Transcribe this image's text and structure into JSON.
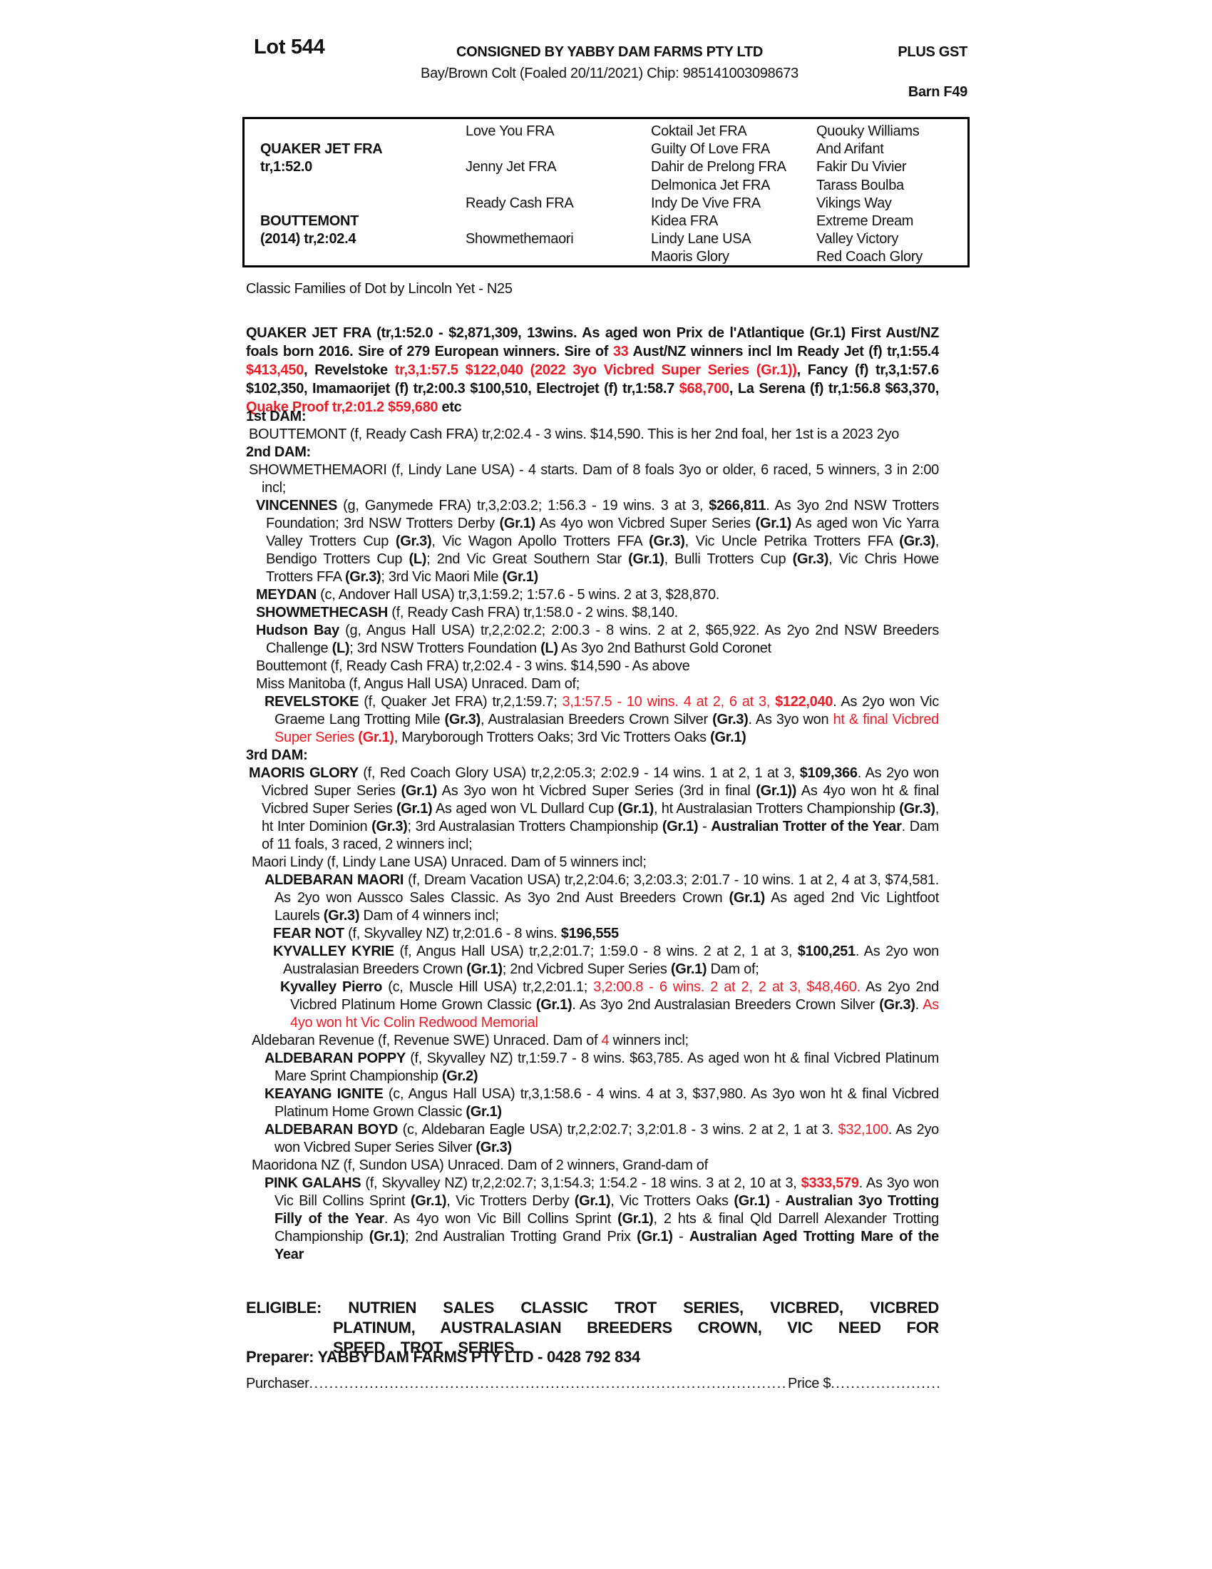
{
  "colors": {
    "text": "#111111",
    "red": "#ed1c24"
  },
  "header": {
    "lot": "Lot 544",
    "consigned": "CONSIGNED BY YABBY DAM FARMS PTY LTD",
    "plus_gst": "PLUS GST",
    "description": "Bay/Brown Colt (Foaled 20/11/2021) Chip: 985141003098673",
    "barn": "Barn F49"
  },
  "pedigree_table": {
    "sire": {
      "name": "QUAKER JET FRA",
      "record": "tr,1:52.0"
    },
    "dam": {
      "name": "BOUTTEMONT",
      "record": "(2014) tr,2:02.4"
    },
    "gen2": [
      "Love You FRA",
      "Jenny Jet FRA",
      "Ready Cash FRA",
      "Showmethemaori"
    ],
    "gen3": [
      "Coktail Jet FRA",
      "Guilty Of Love FRA",
      "Dahir de Prelong FRA",
      "Delmonica Jet FRA",
      "Indy De Vive FRA",
      "Kidea FRA",
      "Lindy Lane USA",
      "Maoris Glory"
    ],
    "gen4": [
      "Quouky Williams",
      "And Arifant",
      "Fakir Du Vivier",
      "Tarass Boulba",
      "Vikings Way",
      "Extreme Dream",
      "Valley Victory",
      "Red Coach Glory"
    ]
  },
  "classic_line": "Classic Families of Dot by Lincoln Yet - N25",
  "sire_summary": {
    "segments": [
      [
        "b",
        "QUAKER JET FRA (tr,1:52.0 - $2,871,309, 13wins. As aged won Prix de l'Atlantique (Gr.1) First Aust/NZ foals born 2016. Sire of 279 European winners. Sire of "
      ],
      [
        "br",
        "33"
      ],
      [
        "b",
        " Aust/NZ winners incl Im Ready Jet (f) tr,1:55.4 "
      ],
      [
        "br",
        "$413,450"
      ],
      [
        "b",
        ", Revelstoke "
      ],
      [
        "br",
        "tr,3,1:57.5 $122,040 (2022 3yo Vicbred Super Series (Gr.1))"
      ],
      [
        "b",
        ", Fancy (f) tr,3,1:57.6 $102,350, Imamaorijet (f) tr,2:00.3 $100,510, Electrojet (f) tr,1:58.7 "
      ],
      [
        "br",
        "$68,700"
      ],
      [
        "b",
        ",  La Serena (f) tr,1:56.8 $63,370, "
      ],
      [
        "br",
        "Quake Proof tr,2:01.2 $59,680"
      ],
      [
        "b",
        " etc"
      ]
    ]
  },
  "pedigree": [
    {
      "c": "dam-label",
      "s": [
        [
          "b",
          "1st DAM:"
        ]
      ]
    },
    {
      "c": "e-dam",
      "s": [
        [
          "",
          "BOUTTEMONT (f, Ready Cash FRA) tr,2:02.4 - 3 wins. $14,590. This is her 2nd foal, her 1st is a 2023 2yo"
        ]
      ]
    },
    {
      "c": "dam-label",
      "s": [
        [
          "b",
          "2nd DAM:"
        ]
      ]
    },
    {
      "c": "e-dam",
      "s": [
        [
          "",
          "SHOWMETHEMAORI (f, Lindy Lane USA) - 4 starts. Dam of 8 foals 3yo or older, 6 raced, 5 winners, 3 in 2:00 incl;"
        ]
      ]
    },
    {
      "c": "g1",
      "s": [
        [
          "b",
          "VINCENNES "
        ],
        [
          "",
          "(g, Ganymede FRA) tr,3,2:03.2; 1:56.3 - 19 wins. 3 at 3, "
        ],
        [
          "b",
          "$266,811"
        ],
        [
          "",
          ". As 3yo 2nd NSW Trotters Foundation; 3rd NSW Trotters Derby "
        ],
        [
          "b",
          "(Gr.1)"
        ],
        [
          "",
          " As 4yo won Vicbred Super Series "
        ],
        [
          "b",
          "(Gr.1)"
        ],
        [
          "",
          " As aged won Vic Yarra Valley Trotters Cup "
        ],
        [
          "b",
          "(Gr.3)"
        ],
        [
          "",
          ", Vic Wagon Apollo Trotters FFA "
        ],
        [
          "b",
          "(Gr.3)"
        ],
        [
          "",
          ", Vic Uncle Petrika Trotters FFA "
        ],
        [
          "b",
          "(Gr.3)"
        ],
        [
          "",
          ", Bendigo Trotters Cup "
        ],
        [
          "b",
          "(L)"
        ],
        [
          "",
          "; 2nd Vic Great Southern Star "
        ],
        [
          "b",
          "(Gr.1)"
        ],
        [
          "",
          ", Bulli Trotters Cup "
        ],
        [
          "b",
          "(Gr.3)"
        ],
        [
          "",
          ", Vic Chris Howe Trotters FFA "
        ],
        [
          "b",
          "(Gr.3)"
        ],
        [
          "",
          "; 3rd Vic Maori Mile "
        ],
        [
          "b",
          "(Gr.1)"
        ]
      ]
    },
    {
      "c": "g1",
      "s": [
        [
          "b",
          "MEYDAN "
        ],
        [
          "",
          "(c, Andover Hall USA) tr,3,1:59.2; 1:57.6 - 5 wins. 2 at 3, $28,870."
        ]
      ]
    },
    {
      "c": "g1",
      "s": [
        [
          "b",
          "SHOWMETHECASH "
        ],
        [
          "",
          "(f, Ready Cash FRA) tr,1:58.0 - 2 wins. $8,140."
        ]
      ]
    },
    {
      "c": "g1",
      "s": [
        [
          "b",
          "Hudson Bay "
        ],
        [
          "",
          "(g, Angus Hall USA) tr,2,2:02.2; 2:00.3 - 8 wins. 2 at 2, $65,922. As 2yo 2nd NSW Breeders Challenge "
        ],
        [
          "b",
          "(L)"
        ],
        [
          "",
          "; 3rd NSW Trotters Foundation "
        ],
        [
          "b",
          "(L)"
        ],
        [
          "",
          " As 3yo 2nd Bathurst Gold Coronet"
        ]
      ]
    },
    {
      "c": "g1",
      "s": [
        [
          "",
          "Bouttemont (f, Ready Cash FRA) tr,2:02.4 - 3 wins. $14,590 - As above"
        ]
      ]
    },
    {
      "c": "g1",
      "s": [
        [
          "",
          "Miss Manitoba (f, Angus Hall USA) Unraced. Dam of;"
        ]
      ]
    },
    {
      "c": "g2",
      "s": [
        [
          "b",
          "REVELSTOKE "
        ],
        [
          "",
          "(f, Quaker Jet FRA) tr,2,1:59.7; "
        ],
        [
          "r",
          "3,1:57.5 - 10 wins. 4 at 2, 6 at 3, "
        ],
        [
          "br",
          "$122,040"
        ],
        [
          "",
          ". As 2yo won Vic Graeme Lang Trotting Mile "
        ],
        [
          "b",
          "(Gr.3)"
        ],
        [
          "",
          ", Australasian Breeders Crown Silver "
        ],
        [
          "b",
          "(Gr.3)"
        ],
        [
          "",
          ". As 3yo won "
        ],
        [
          "r",
          "ht & final Vicbred Super Series "
        ],
        [
          "br",
          "(Gr.1)"
        ],
        [
          "",
          ", Maryborough Trotters Oaks; 3rd Vic Trotters Oaks "
        ],
        [
          "b",
          "(Gr.1)"
        ]
      ]
    },
    {
      "c": "dam-label",
      "s": [
        [
          "b",
          "3rd DAM:"
        ]
      ]
    },
    {
      "c": "e-dam",
      "s": [
        [
          "b",
          "MAORIS GLORY "
        ],
        [
          "",
          "(f, Red Coach Glory USA) tr,2,2:05.3; 2:02.9 - 14 wins. 1 at 2, 1 at 3, "
        ],
        [
          "b",
          "$109,366"
        ],
        [
          "",
          ". As 2yo won Vicbred Super Series "
        ],
        [
          "b",
          "(Gr.1)"
        ],
        [
          "",
          " As 3yo won ht Vicbred Super Series (3rd in final "
        ],
        [
          "b",
          "(Gr.1))"
        ],
        [
          "",
          " As 4yo won ht & final Vicbred Super Series "
        ],
        [
          "b",
          "(Gr.1)"
        ],
        [
          "",
          " As aged won VL Dullard Cup "
        ],
        [
          "b",
          "(Gr.1)"
        ],
        [
          "",
          ", ht Australasian Trotters Championship "
        ],
        [
          "b",
          "(Gr.3)"
        ],
        [
          "",
          ", ht Inter Dominion "
        ],
        [
          "b",
          "(Gr.3)"
        ],
        [
          "",
          "; 3rd Australasian Trotters Championship "
        ],
        [
          "b",
          "(Gr.1)"
        ],
        [
          "",
          " - "
        ],
        [
          "b",
          "Australian Trotter of the Year"
        ],
        [
          "",
          ". Dam of 11 foals, 3 raced, 2 winners incl;"
        ]
      ]
    },
    {
      "c": "e1c",
      "s": [
        [
          "",
          "Maori Lindy (f, Lindy Lane USA) Unraced. Dam of 5 winners incl;"
        ]
      ]
    },
    {
      "c": "g2",
      "s": [
        [
          "b",
          "ALDEBARAN MAORI "
        ],
        [
          "",
          "(f, Dream Vacation USA) tr,2,2:04.6; 3,2:03.3; 2:01.7 - 10 wins. 1 at 2, 4 at 3, $74,581. As 2yo won Aussco Sales Classic. As 3yo 2nd Aust Breeders Crown "
        ],
        [
          "b",
          "(Gr.1)"
        ],
        [
          "",
          " As aged 2nd Vic Lightfoot Laurels "
        ],
        [
          "b",
          "(Gr.3)"
        ],
        [
          "",
          " Dam of 4 winners incl;"
        ]
      ]
    },
    {
      "c": "g3",
      "s": [
        [
          "b",
          "FEAR NOT "
        ],
        [
          "",
          "(f, Skyvalley NZ) tr,2:01.6 - 8 wins. "
        ],
        [
          "b",
          "$196,555"
        ]
      ]
    },
    {
      "c": "g3",
      "s": [
        [
          "b",
          "KYVALLEY KYRIE "
        ],
        [
          "",
          "(f, Angus Hall USA) tr,2,2:01.7; 1:59.0 - 8 wins. 2 at 2, 1 at 3, "
        ],
        [
          "b",
          "$100,251"
        ],
        [
          "",
          ". As 2yo won Australasian Breeders Crown "
        ],
        [
          "b",
          "(Gr.1)"
        ],
        [
          "",
          "; 2nd Vicbred Super Series "
        ],
        [
          "b",
          "(Gr.1)"
        ],
        [
          "",
          " Dam of;"
        ]
      ]
    },
    {
      "c": "g4",
      "s": [
        [
          "b",
          "Kyvalley Pierro "
        ],
        [
          "",
          "(c, Muscle Hill USA) tr,2,2:01.1; "
        ],
        [
          "r",
          "3,2:00.8 - 6 wins. 2 at 2, 2 at 3, $48,460."
        ],
        [
          "",
          " As 2yo 2nd Vicbred Platinum Home Grown Classic "
        ],
        [
          "b",
          "(Gr.1)"
        ],
        [
          "",
          ". As 3yo 2nd Australasian Breeders Crown Silver "
        ],
        [
          "b",
          "(Gr.3)"
        ],
        [
          "",
          ". "
        ],
        [
          "r",
          "As 4yo won ht Vic Colin Redwood Memorial"
        ]
      ]
    },
    {
      "c": "e1c",
      "s": [
        [
          "",
          "Aldebaran Revenue (f, Revenue SWE) Unraced. Dam of "
        ],
        [
          "r",
          "4"
        ],
        [
          "",
          " winners incl;"
        ]
      ]
    },
    {
      "c": "g2",
      "s": [
        [
          "b",
          "ALDEBARAN POPPY "
        ],
        [
          "",
          "(f, Skyvalley NZ) tr,1:59.7 - 8 wins. $63,785. As aged won ht & final Vicbred Platinum Mare Sprint Championship "
        ],
        [
          "b",
          "(Gr.2)"
        ]
      ]
    },
    {
      "c": "g2",
      "s": [
        [
          "b",
          "KEAYANG IGNITE "
        ],
        [
          "",
          "(c, Angus Hall USA) tr,3,1:58.6 - 4 wins. 4 at 3, $37,980. As 3yo won ht & final Vicbred Platinum Home Grown Classic "
        ],
        [
          "b",
          "(Gr.1)"
        ]
      ]
    },
    {
      "c": "g2",
      "s": [
        [
          "b",
          "ALDEBARAN BOYD "
        ],
        [
          "",
          "(c, Aldebaran Eagle USA) tr,2,2:02.7; 3,2:01.8 - 3 wins. 2 at 2, 1 at 3. "
        ],
        [
          "r",
          "$32,100"
        ],
        [
          "",
          ". As 2yo won Vicbred Super Series Silver "
        ],
        [
          "b",
          "(Gr.3)"
        ]
      ]
    },
    {
      "c": "e1c",
      "s": [
        [
          "",
          "Maoridona NZ (f, Sundon USA) Unraced. Dam of 2 winners, Grand-dam of"
        ]
      ]
    },
    {
      "c": "g2",
      "s": [
        [
          "b",
          "PINK GALAHS "
        ],
        [
          "",
          "(f, Skyvalley NZ) tr,2,2:02.7; 3,1:54.3; 1:54.2 - 18 wins. 3 at 2, 10 at 3, "
        ],
        [
          "br",
          "$333,579"
        ],
        [
          "",
          ". As 3yo won Vic Bill Collins Sprint "
        ],
        [
          "b",
          "(Gr.1)"
        ],
        [
          "",
          ", Vic Trotters Derby "
        ],
        [
          "b",
          "(Gr.1)"
        ],
        [
          "",
          ", Vic Trotters Oaks "
        ],
        [
          "b",
          "(Gr.1)"
        ],
        [
          "",
          " - "
        ],
        [
          "b",
          "Australian 3yo Trotting Filly of the Year"
        ],
        [
          "",
          ". As 4yo won Vic Bill Collins Sprint "
        ],
        [
          "b",
          "(Gr.1)"
        ],
        [
          "",
          ", 2 hts & final Qld Darrell Alexander Trotting Championship "
        ],
        [
          "b",
          "(Gr.1)"
        ],
        [
          "",
          "; 2nd Australian Trotting Grand Prix "
        ],
        [
          "b",
          "(Gr.1)"
        ],
        [
          "",
          " - "
        ],
        [
          "b",
          "Australian Aged Trotting Mare of the Year"
        ]
      ]
    }
  ],
  "eligible": {
    "segments": [
      [
        "b",
        "ELIGIBLE:  NUTRIEN SALES CLASSIC TROT SERIES, VICBRED, VICBRED PLATINUM, AUSTRALASIAN BREEDERS CROWN, VIC NEED FOR SPEED TROT SERIES"
      ]
    ]
  },
  "preparer": "Preparer: YABBY DAM FARMS PTY LTD - 0428 792 834",
  "purchaser": {
    "label": "Purchaser",
    "price_label": "Price $",
    "dots": "........................................................................................................................................................................"
  }
}
